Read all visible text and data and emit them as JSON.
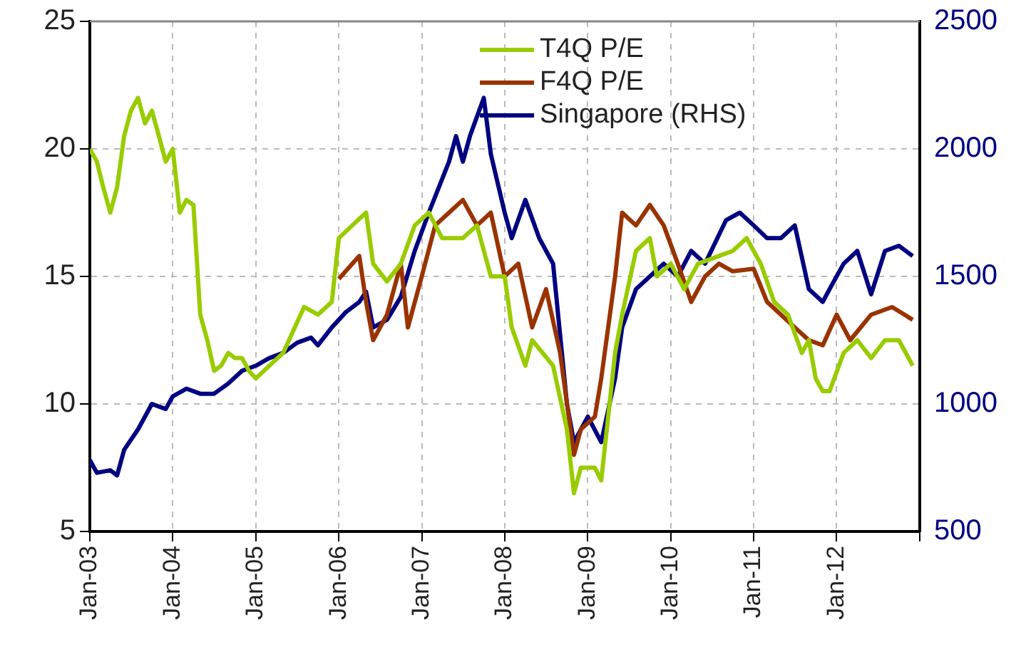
{
  "chart_data": {
    "type": "line",
    "xlim": [
      "2003-01",
      "2013-01"
    ],
    "xticks": [
      {
        "value": "2003-01",
        "label": "Jan-03"
      },
      {
        "value": "2004-01",
        "label": "Jan-04"
      },
      {
        "value": "2005-01",
        "label": "Jan-05"
      },
      {
        "value": "2006-01",
        "label": "Jan-06"
      },
      {
        "value": "2007-01",
        "label": "Jan-07"
      },
      {
        "value": "2008-01",
        "label": "Jan-08"
      },
      {
        "value": "2009-01",
        "label": "Jan-09"
      },
      {
        "value": "2010-01",
        "label": "Jan-10"
      },
      {
        "value": "2011-01",
        "label": "Jan-11"
      },
      {
        "value": "2012-01",
        "label": "Jan-12"
      },
      {
        "value": "2013-01",
        "label": null
      }
    ],
    "ylim": [
      5,
      25
    ],
    "yticks": [
      5,
      10,
      15,
      20,
      25
    ],
    "y2lim": [
      500,
      2500
    ],
    "y2ticks": [
      500,
      1000,
      1500,
      2000,
      2500
    ],
    "grid": true,
    "legend": "top",
    "marker": "none",
    "line_style": "solid",
    "series": [
      {
        "name": "T4Q P/E",
        "color": "#99cc00",
        "x": [
          "2003-01",
          "2003-02",
          "2003-03",
          "2003-04",
          "2003-05",
          "2003-06",
          "2003-07",
          "2003-08",
          "2003-09",
          "2003-10",
          "2003-11",
          "2003-12",
          "2004-01",
          "2004-02",
          "2004-03",
          "2004-04",
          "2004-05",
          "2004-06",
          "2004-07",
          "2004-08",
          "2004-09",
          "2004-10",
          "2004-11",
          "2004-12",
          "2005-01",
          "2005-03",
          "2005-05",
          "2005-08",
          "2005-10",
          "2005-12",
          "2006-01",
          "2006-03",
          "2006-05",
          "2006-06",
          "2006-08",
          "2006-10",
          "2006-12",
          "2007-02",
          "2007-04",
          "2007-07",
          "2007-09",
          "2007-11",
          "2008-01",
          "2008-02",
          "2008-04",
          "2008-05",
          "2008-08",
          "2008-10",
          "2008-11",
          "2008-12",
          "2009-02",
          "2009-03",
          "2009-05",
          "2009-06",
          "2009-08",
          "2009-10",
          "2009-11",
          "2010-01",
          "2010-03",
          "2010-05",
          "2010-08",
          "2010-10",
          "2010-12",
          "2011-02",
          "2011-04",
          "2011-06",
          "2011-08",
          "2011-09",
          "2011-10",
          "2011-11",
          "2011-12",
          "2012-02",
          "2012-04",
          "2012-06",
          "2012-08",
          "2012-10",
          "2012-12"
        ],
        "values": [
          20,
          19.5,
          18.5,
          17.5,
          18.5,
          20.5,
          21.5,
          22,
          21,
          21.5,
          20.5,
          19.5,
          20,
          17.5,
          18,
          17.8,
          13.5,
          12.5,
          11.3,
          11.5,
          12,
          11.8,
          11.8,
          11.3,
          11,
          11.5,
          12,
          13.8,
          13.5,
          14,
          16.5,
          17,
          17.5,
          15.5,
          14.8,
          15.5,
          17,
          17.5,
          16.5,
          16.5,
          17,
          15,
          15,
          13,
          11.5,
          12.5,
          11.5,
          9,
          6.5,
          7.5,
          7.5,
          7,
          12,
          13.5,
          16,
          16.5,
          15,
          15.5,
          14.5,
          15.5,
          15.8,
          16,
          16.5,
          15.5,
          14,
          13.5,
          12,
          12.5,
          11,
          10.5,
          10.5,
          12,
          12.5,
          11.8,
          12.5,
          12.5,
          11.5
        ]
      },
      {
        "name": "F4Q P/E",
        "color": "#993300",
        "x": [
          "2006-01",
          "2006-04",
          "2006-05",
          "2006-06",
          "2006-08",
          "2006-10",
          "2006-11",
          "2007-01",
          "2007-03",
          "2007-05",
          "2007-07",
          "2007-09",
          "2007-11",
          "2008-01",
          "2008-03",
          "2008-05",
          "2008-07",
          "2008-09",
          "2008-11",
          "2008-12",
          "2009-02",
          "2009-03",
          "2009-05",
          "2009-06",
          "2009-08",
          "2009-10",
          "2009-12",
          "2010-02",
          "2010-04",
          "2010-06",
          "2010-08",
          "2010-10",
          "2011-01",
          "2011-03",
          "2011-05",
          "2011-07",
          "2011-09",
          "2011-11",
          "2012-01",
          "2012-03",
          "2012-06",
          "2012-09",
          "2012-12"
        ],
        "values": [
          14.9,
          15.8,
          14,
          12.5,
          13.5,
          15.5,
          13,
          15,
          17,
          17.5,
          18,
          17,
          17.5,
          15,
          15.5,
          13,
          14.5,
          12,
          8,
          9,
          9.5,
          11,
          15,
          17.5,
          17,
          17.8,
          17,
          15.5,
          14,
          15,
          15.5,
          15.2,
          15.3,
          14,
          13.5,
          13,
          12.5,
          12.3,
          13.5,
          12.5,
          13.5,
          13.8,
          13.3
        ]
      },
      {
        "name": "Singapore (RHS)",
        "color": "#000080",
        "axis": "y2",
        "x": [
          "2003-01",
          "2003-02",
          "2003-04",
          "2003-05",
          "2003-06",
          "2003-08",
          "2003-10",
          "2003-12",
          "2004-01",
          "2004-03",
          "2004-05",
          "2004-07",
          "2004-09",
          "2004-11",
          "2005-01",
          "2005-03",
          "2005-05",
          "2005-07",
          "2005-09",
          "2005-10",
          "2005-12",
          "2006-02",
          "2006-04",
          "2006-05",
          "2006-06",
          "2006-08",
          "2006-10",
          "2006-12",
          "2007-02",
          "2007-05",
          "2007-06",
          "2007-07",
          "2007-08",
          "2007-10",
          "2007-11",
          "2008-01",
          "2008-02",
          "2008-04",
          "2008-06",
          "2008-08",
          "2008-10",
          "2008-11",
          "2009-01",
          "2009-03",
          "2009-05",
          "2009-06",
          "2009-08",
          "2009-10",
          "2009-12",
          "2010-02",
          "2010-04",
          "2010-06",
          "2010-09",
          "2010-11",
          "2011-01",
          "2011-03",
          "2011-05",
          "2011-07",
          "2011-09",
          "2011-11",
          "2011-12",
          "2012-02",
          "2012-04",
          "2012-06",
          "2012-08",
          "2012-10",
          "2012-12"
        ],
        "values": [
          780,
          730,
          740,
          720,
          820,
          900,
          1000,
          980,
          1030,
          1060,
          1040,
          1040,
          1080,
          1130,
          1150,
          1180,
          1200,
          1240,
          1260,
          1230,
          1300,
          1360,
          1400,
          1440,
          1300,
          1330,
          1420,
          1600,
          1750,
          1950,
          2050,
          1950,
          2050,
          2200,
          1980,
          1750,
          1650,
          1800,
          1650,
          1550,
          1000,
          850,
          950,
          850,
          1100,
          1300,
          1450,
          1500,
          1550,
          1500,
          1600,
          1550,
          1720,
          1750,
          1700,
          1650,
          1650,
          1700,
          1450,
          1400,
          1450,
          1550,
          1600,
          1430,
          1600,
          1620,
          1580
        ]
      }
    ]
  }
}
